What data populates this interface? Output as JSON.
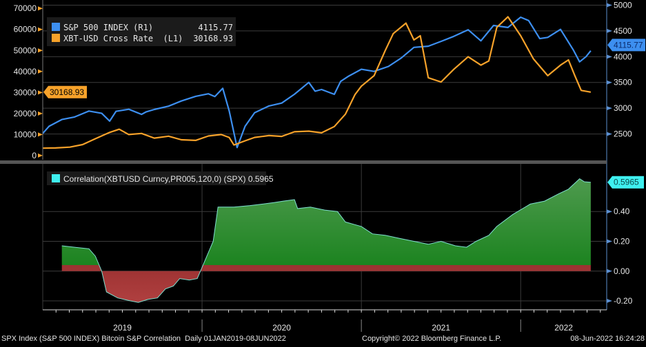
{
  "chart_data": [
    {
      "type": "line",
      "panel": "top",
      "x_unit": "decimal year",
      "xlim": [
        2019.0,
        2022.54
      ],
      "left_axis": {
        "ylim": [
          -2000,
          74000
        ],
        "ticks": [
          0,
          10000,
          20000,
          30000,
          40000,
          50000,
          60000,
          70000
        ],
        "tick_labels": [
          "0",
          "10000",
          "20000",
          "30000",
          "40000",
          "50000",
          "60000",
          "70000"
        ]
      },
      "right_axis": {
        "ylim": [
          2000,
          5100
        ],
        "ticks": [
          2500,
          3000,
          3500,
          4000,
          4500,
          5000
        ],
        "tick_labels": [
          "2500",
          "3000",
          "3500",
          "4000",
          "4500",
          "5000"
        ]
      },
      "series": [
        {
          "name": "S&P 500 INDEX (R1)",
          "axis": "right",
          "color": "#3d8ff0",
          "last_value": "4115.77",
          "x": [
            2019.0,
            2019.04,
            2019.12,
            2019.2,
            2019.29,
            2019.37,
            2019.42,
            2019.46,
            2019.54,
            2019.62,
            2019.65,
            2019.7,
            2019.79,
            2019.87,
            2019.96,
            2020.04,
            2020.08,
            2020.13,
            2020.17,
            2020.22,
            2020.27,
            2020.33,
            2020.42,
            2020.5,
            2020.58,
            2020.67,
            2020.71,
            2020.75,
            2020.83,
            2020.87,
            2020.92,
            2021.0,
            2021.08,
            2021.17,
            2021.25,
            2021.33,
            2021.42,
            2021.5,
            2021.58,
            2021.67,
            2021.75,
            2021.83,
            2021.92,
            2022.0,
            2022.05,
            2022.12,
            2022.17,
            2022.25,
            2022.33,
            2022.37,
            2022.41,
            2022.44
          ],
          "y": [
            2510,
            2650,
            2780,
            2830,
            2945,
            2900,
            2750,
            2940,
            2980,
            2880,
            2930,
            2975,
            3040,
            3140,
            3230,
            3280,
            3225,
            3386,
            2950,
            2237,
            2650,
            2912,
            3044,
            3100,
            3271,
            3500,
            3330,
            3363,
            3270,
            3520,
            3622,
            3756,
            3714,
            3811,
            3973,
            4181,
            4204,
            4297,
            4395,
            4523,
            4307,
            4605,
            4567,
            4766,
            4700,
            4350,
            4374,
            4530,
            4132,
            3900,
            4000,
            4115.77
          ]
        },
        {
          "name": "XBT-USD Cross Rate (L1)",
          "axis": "left",
          "color": "#f7a22a",
          "last_value": "30168.93",
          "x": [
            2019.0,
            2019.08,
            2019.17,
            2019.25,
            2019.33,
            2019.42,
            2019.48,
            2019.54,
            2019.62,
            2019.7,
            2019.79,
            2019.87,
            2019.96,
            2020.04,
            2020.12,
            2020.17,
            2020.2,
            2020.27,
            2020.33,
            2020.42,
            2020.5,
            2020.58,
            2020.67,
            2020.75,
            2020.83,
            2020.9,
            2020.96,
            2021.0,
            2021.08,
            2021.15,
            2021.2,
            2021.28,
            2021.33,
            2021.37,
            2021.42,
            2021.5,
            2021.58,
            2021.67,
            2021.75,
            2021.8,
            2021.85,
            2021.92,
            2022.0,
            2022.08,
            2022.17,
            2022.25,
            2022.3,
            2022.34,
            2022.38,
            2022.44
          ],
          "y": [
            3500,
            3600,
            4000,
            5200,
            8000,
            11000,
            12500,
            10000,
            10500,
            8300,
            9200,
            7500,
            7200,
            9300,
            10000,
            8600,
            5000,
            7000,
            8600,
            9500,
            9100,
            11300,
            11600,
            10800,
            13800,
            19700,
            29000,
            33000,
            38000,
            50000,
            58000,
            63000,
            55000,
            57000,
            37000,
            35000,
            41000,
            47000,
            43000,
            45000,
            61000,
            66000,
            57000,
            46000,
            38000,
            43000,
            45500,
            38000,
            31000,
            30168.93
          ]
        }
      ],
      "legend": {
        "placement": "top-left",
        "entries": [
          {
            "label": "S&P 500 INDEX (R1)",
            "value": "4115.77"
          },
          {
            "label": "XBT-USD Cross Rate  (L1)",
            "value": "30168.93"
          }
        ]
      }
    },
    {
      "type": "area",
      "panel": "bottom",
      "x_unit": "decimal year",
      "xlim": [
        2019.0,
        2022.54
      ],
      "ylim": [
        -0.26,
        0.72
      ],
      "ticks": [
        -0.2,
        0,
        0.2,
        0.4
      ],
      "tick_labels": [
        "-0.20",
        "0.00",
        "0.20",
        "0.40"
      ],
      "series": [
        {
          "name": "Correlation(XBTUSD Curncy,PR005,120,0) (SPX)",
          "last_value": "0.5965",
          "positive_color": "#0b8a14",
          "negative_color": "#8a1414",
          "line_color": "#7fe0d0",
          "x": [
            2019.12,
            2019.2,
            2019.29,
            2019.33,
            2019.37,
            2019.4,
            2019.47,
            2019.55,
            2019.6,
            2019.66,
            2019.72,
            2019.77,
            2019.82,
            2019.86,
            2019.92,
            2019.97,
            2020.01,
            2020.07,
            2020.1,
            2020.2,
            2020.3,
            2020.38,
            2020.45,
            2020.51,
            2020.58,
            2020.6,
            2020.68,
            2020.77,
            2020.85,
            2020.9,
            2021.0,
            2021.07,
            2021.15,
            2021.24,
            2021.33,
            2021.42,
            2021.5,
            2021.59,
            2021.66,
            2021.72,
            2021.8,
            2021.85,
            2021.95,
            2022.06,
            2022.15,
            2022.24,
            2022.3,
            2022.37,
            2022.4,
            2022.44
          ],
          "y": [
            0.17,
            0.16,
            0.15,
            0.1,
            0.0,
            -0.14,
            -0.18,
            -0.2,
            -0.21,
            -0.19,
            -0.18,
            -0.12,
            -0.1,
            -0.05,
            -0.06,
            -0.05,
            0.05,
            0.2,
            0.43,
            0.43,
            0.44,
            0.45,
            0.46,
            0.47,
            0.48,
            0.42,
            0.43,
            0.41,
            0.4,
            0.33,
            0.3,
            0.25,
            0.24,
            0.22,
            0.2,
            0.18,
            0.2,
            0.17,
            0.16,
            0.2,
            0.24,
            0.3,
            0.38,
            0.45,
            0.47,
            0.52,
            0.55,
            0.62,
            0.6,
            0.5965
          ]
        }
      ],
      "legend": {
        "placement": "top-left",
        "entries": [
          {
            "label": "Correlation(XBTUSD Curncy,PR005,120,0) (SPX) 0.5965"
          }
        ]
      }
    }
  ],
  "x_axis": {
    "labels": [
      {
        "text": "2019",
        "x": 2019.5
      },
      {
        "text": "2020",
        "x": 2020.5
      },
      {
        "text": "2021",
        "x": 2021.5
      },
      {
        "text": "2022",
        "x": 2022.27
      }
    ],
    "dividers": [
      2020,
      2021,
      2022
    ]
  },
  "footer": {
    "description": "SPX Index (S&P 500 INDEX) Bitcoin S&P Correlation  Daily 01JAN2019-08JUN2022",
    "copyright": "Copyright© 2022 Bloomberg Finance L.P.",
    "timestamp": "08-Jun-2022 16:24:28"
  }
}
